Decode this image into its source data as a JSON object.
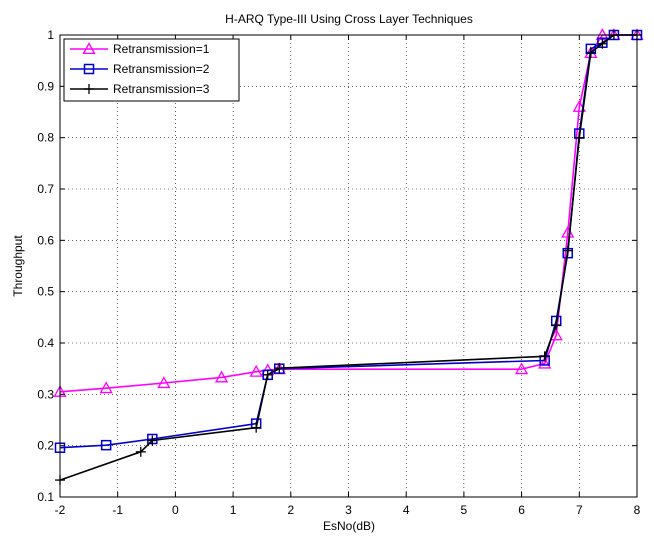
{
  "chart_data": {
    "type": "line",
    "title": "H-ARQ Type-III Using Cross Layer Techniques",
    "xlabel": "EsNo(dB)",
    "ylabel": "Throughput",
    "xlim": [
      -2,
      8
    ],
    "ylim": [
      0.1,
      1
    ],
    "xticks": [
      "-2",
      "-1",
      "0",
      "1",
      "2",
      "3",
      "4",
      "5",
      "6",
      "7",
      "8"
    ],
    "yticks": [
      "0.1",
      "0.2",
      "0.3",
      "0.4",
      "0.5",
      "0.6",
      "0.7",
      "0.8",
      "0.9",
      "1"
    ],
    "grid": true,
    "legend_position": "top-left",
    "series": [
      {
        "name": "Retransmission=1",
        "color": "#ff00ff",
        "marker": "triangle",
        "points": [
          [
            -2,
            0.305
          ],
          [
            -1.2,
            0.312
          ],
          [
            -0.2,
            0.322
          ],
          [
            0.8,
            0.333
          ],
          [
            1.4,
            0.344
          ],
          [
            1.6,
            0.347
          ],
          [
            1.8,
            0.349
          ],
          [
            6.0,
            0.349
          ],
          [
            6.4,
            0.36
          ],
          [
            6.6,
            0.415
          ],
          [
            6.8,
            0.615
          ],
          [
            7.0,
            0.86
          ],
          [
            7.2,
            0.965
          ],
          [
            7.4,
            1.0
          ],
          [
            7.6,
            1.0
          ],
          [
            8.0,
            1.0
          ]
        ]
      },
      {
        "name": "Retransmission=2",
        "color": "#0000cc",
        "marker": "square",
        "points": [
          [
            -2,
            0.196
          ],
          [
            -1.2,
            0.201
          ],
          [
            -0.4,
            0.213
          ],
          [
            1.4,
            0.243
          ],
          [
            1.6,
            0.338
          ],
          [
            1.8,
            0.35
          ],
          [
            6.4,
            0.366
          ],
          [
            6.6,
            0.443
          ],
          [
            6.8,
            0.575
          ],
          [
            7.0,
            0.808
          ],
          [
            7.2,
            0.973
          ],
          [
            7.4,
            0.985
          ],
          [
            7.6,
            1.0
          ],
          [
            8.0,
            1.0
          ]
        ]
      },
      {
        "name": "Retransmission=3",
        "color": "#000000",
        "marker": "plus",
        "points": [
          [
            -2,
            0.133
          ],
          [
            -0.6,
            0.188
          ],
          [
            -0.4,
            0.21
          ],
          [
            1.4,
            0.235
          ],
          [
            1.6,
            0.338
          ],
          [
            1.8,
            0.351
          ],
          [
            6.4,
            0.374
          ],
          [
            6.6,
            0.435
          ],
          [
            6.8,
            0.58
          ],
          [
            7.0,
            0.8
          ],
          [
            7.2,
            0.966
          ],
          [
            7.4,
            0.983
          ],
          [
            7.6,
            1.0
          ],
          [
            8.0,
            1.0
          ]
        ]
      }
    ]
  }
}
